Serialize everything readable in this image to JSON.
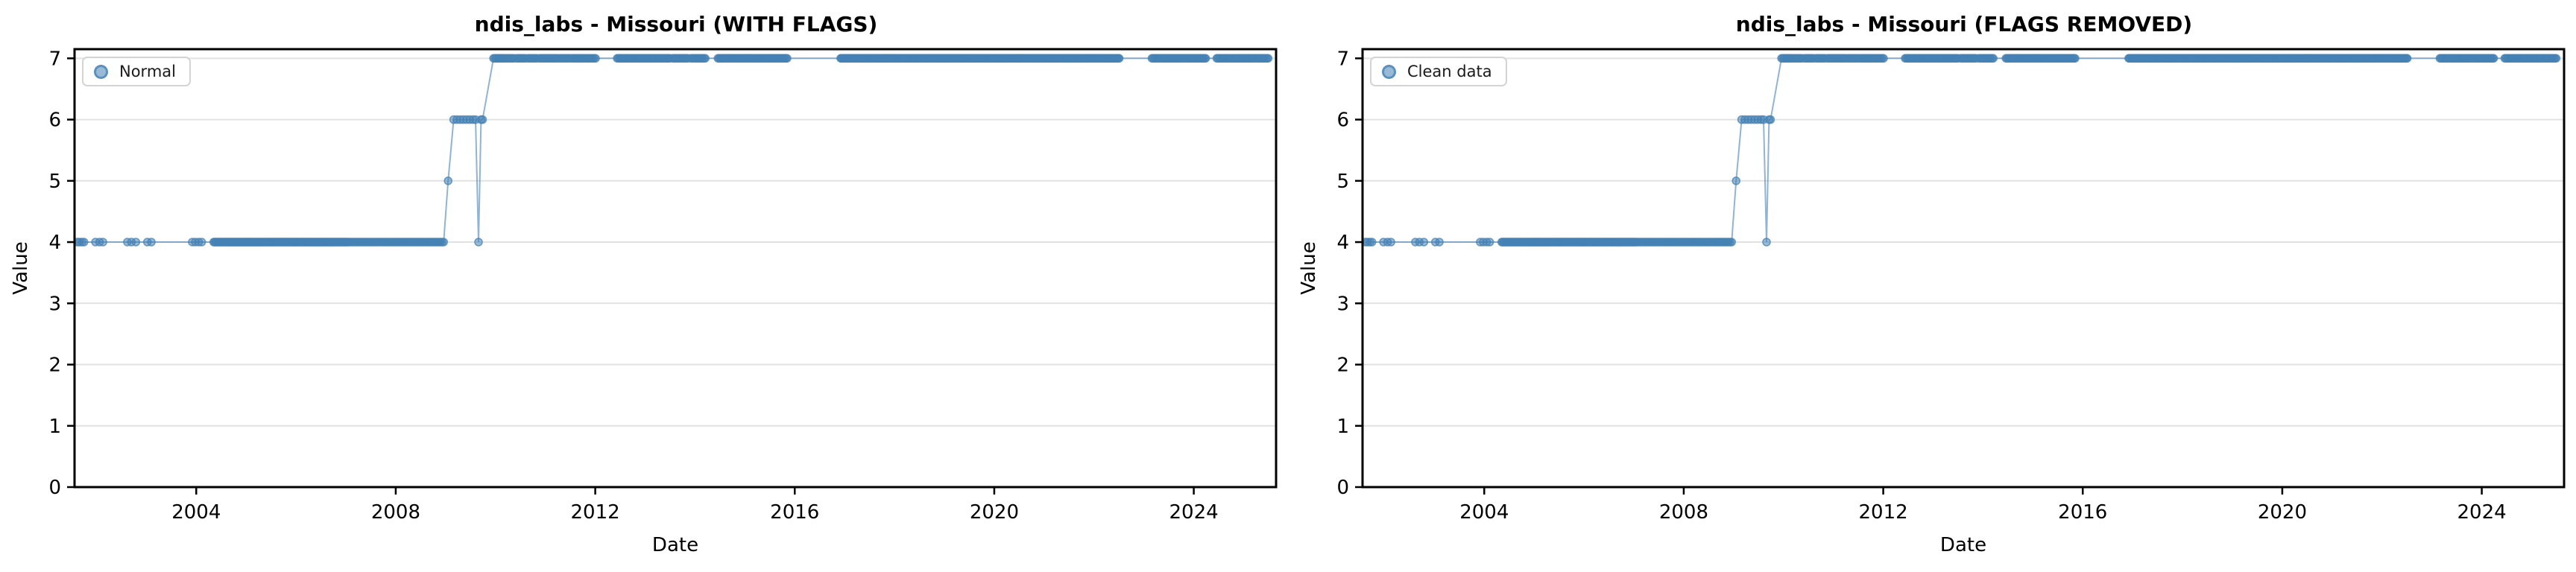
{
  "chart_data": {
    "type": "scatter",
    "description": "Two side-by-side scatter/line plots of the same step-like time series",
    "style": {
      "marker_color": "#4682B4",
      "marker_alpha": 0.55,
      "line_color": "#4682B4",
      "line_alpha": 0.6,
      "grid_color": "#e2e2e2",
      "spine_color": "#000000",
      "background": "#ffffff"
    },
    "runs_format": "[start_year, end_year, step_year, value]",
    "points_format": "[year, value]",
    "charts": [
      {
        "title": "ndis_labs - Missouri (WITH FLAGS)",
        "xlabel": "Date",
        "ylabel": "Value",
        "legend_label": "Normal",
        "legend_position": "upper left",
        "grid": "horizontal",
        "xlim": [
          2001.56,
          2025.65
        ],
        "ylim": [
          0,
          7.15
        ],
        "xticks": [
          2004,
          2008,
          2012,
          2016,
          2020,
          2024
        ],
        "yticks": [
          0,
          1,
          2,
          3,
          4,
          5,
          6,
          7
        ],
        "series": {
          "name": "Normal",
          "points": [
            [
              2001.62,
              4
            ],
            [
              2001.66,
              4
            ],
            [
              2001.71,
              4
            ],
            [
              2001.75,
              4
            ],
            [
              2001.98,
              4
            ],
            [
              2002.06,
              4
            ],
            [
              2002.13,
              4
            ],
            [
              2002.62,
              4
            ],
            [
              2002.7,
              4
            ],
            [
              2002.79,
              4
            ],
            [
              2003.02,
              4
            ],
            [
              2003.1,
              4
            ],
            [
              2003.92,
              4
            ],
            [
              2003.98,
              4
            ],
            [
              2004.05,
              4
            ],
            [
              2004.11,
              4
            ],
            [
              2009.05,
              5
            ],
            [
              2009.6,
              6
            ],
            [
              2009.66,
              4
            ],
            [
              2009.71,
              6
            ],
            [
              2009.74,
              6
            ]
          ],
          "runs": [
            [
              2004.35,
              2007.05,
              0.019,
              4
            ],
            [
              2007.08,
              2008.96,
              0.033,
              4
            ],
            [
              2009.16,
              2009.55,
              0.065,
              6
            ],
            [
              2009.96,
              2010.16,
              0.025,
              7
            ],
            [
              2010.19,
              2010.38,
              0.03,
              7
            ],
            [
              2010.42,
              2010.6,
              0.03,
              7
            ],
            [
              2010.65,
              2010.84,
              0.03,
              7
            ],
            [
              2010.88,
              2011.0,
              0.03,
              7
            ],
            [
              2011.03,
              2011.26,
              0.03,
              7
            ],
            [
              2011.31,
              2011.5,
              0.03,
              7
            ],
            [
              2011.53,
              2012.0,
              0.028,
              7
            ],
            [
              2012.44,
              2012.96,
              0.024,
              7
            ],
            [
              2012.99,
              2013.5,
              0.024,
              7
            ],
            [
              2013.55,
              2013.87,
              0.026,
              7
            ],
            [
              2013.92,
              2014.2,
              0.026,
              7
            ],
            [
              2014.46,
              2015.84,
              0.022,
              7
            ],
            [
              2016.92,
              2022.5,
              0.019,
              7
            ],
            [
              2023.16,
              2024.24,
              0.024,
              7
            ],
            [
              2024.46,
              2025.5,
              0.024,
              7
            ]
          ]
        }
      },
      {
        "title": "ndis_labs - Missouri (FLAGS REMOVED)",
        "xlabel": "Date",
        "ylabel": "Value",
        "legend_label": "Clean data",
        "legend_position": "upper left",
        "grid": "horizontal",
        "xlim": [
          2001.56,
          2025.65
        ],
        "ylim": [
          0,
          7.15
        ],
        "xticks": [
          2004,
          2008,
          2012,
          2016,
          2020,
          2024
        ],
        "yticks": [
          0,
          1,
          2,
          3,
          4,
          5,
          6,
          7
        ],
        "series": {
          "name": "Clean data",
          "points": [
            [
              2001.62,
              4
            ],
            [
              2001.66,
              4
            ],
            [
              2001.71,
              4
            ],
            [
              2001.75,
              4
            ],
            [
              2001.98,
              4
            ],
            [
              2002.06,
              4
            ],
            [
              2002.13,
              4
            ],
            [
              2002.62,
              4
            ],
            [
              2002.7,
              4
            ],
            [
              2002.79,
              4
            ],
            [
              2003.02,
              4
            ],
            [
              2003.1,
              4
            ],
            [
              2003.92,
              4
            ],
            [
              2003.98,
              4
            ],
            [
              2004.05,
              4
            ],
            [
              2004.11,
              4
            ],
            [
              2009.05,
              5
            ],
            [
              2009.6,
              6
            ],
            [
              2009.66,
              4
            ],
            [
              2009.71,
              6
            ],
            [
              2009.74,
              6
            ]
          ],
          "runs": [
            [
              2004.35,
              2007.05,
              0.019,
              4
            ],
            [
              2007.08,
              2008.96,
              0.033,
              4
            ],
            [
              2009.16,
              2009.55,
              0.065,
              6
            ],
            [
              2009.96,
              2010.16,
              0.025,
              7
            ],
            [
              2010.19,
              2010.38,
              0.03,
              7
            ],
            [
              2010.42,
              2010.6,
              0.03,
              7
            ],
            [
              2010.65,
              2010.84,
              0.03,
              7
            ],
            [
              2010.88,
              2011.0,
              0.03,
              7
            ],
            [
              2011.03,
              2011.26,
              0.03,
              7
            ],
            [
              2011.31,
              2011.5,
              0.03,
              7
            ],
            [
              2011.53,
              2012.0,
              0.028,
              7
            ],
            [
              2012.44,
              2012.96,
              0.024,
              7
            ],
            [
              2012.99,
              2013.5,
              0.024,
              7
            ],
            [
              2013.55,
              2013.87,
              0.026,
              7
            ],
            [
              2013.92,
              2014.2,
              0.026,
              7
            ],
            [
              2014.46,
              2015.84,
              0.022,
              7
            ],
            [
              2016.92,
              2022.5,
              0.019,
              7
            ],
            [
              2023.16,
              2024.24,
              0.024,
              7
            ],
            [
              2024.46,
              2025.5,
              0.024,
              7
            ]
          ]
        }
      }
    ]
  }
}
